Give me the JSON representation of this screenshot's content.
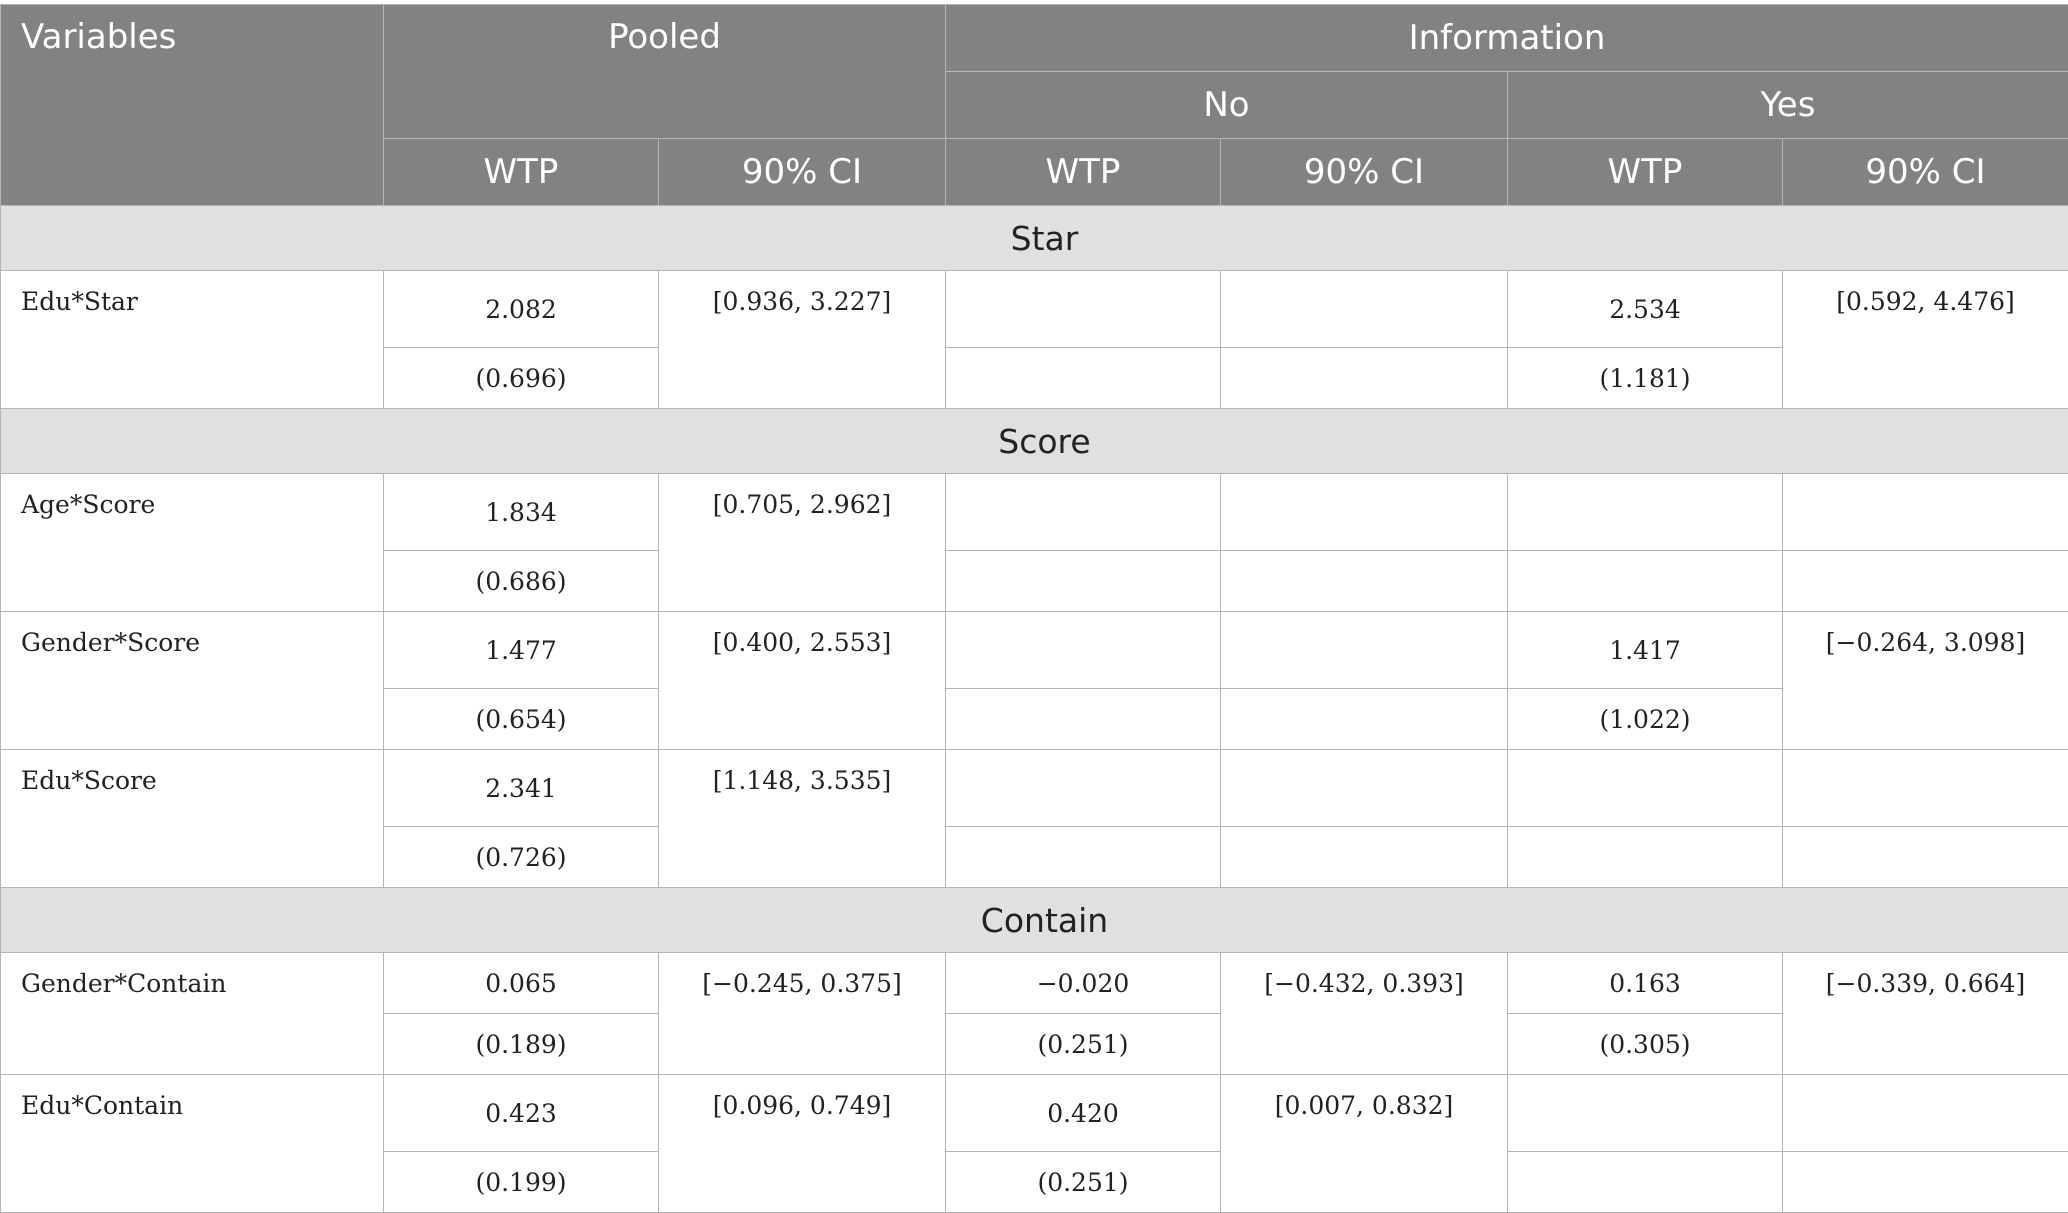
{
  "header": {
    "variables": "Variables",
    "pooled": "Pooled",
    "information": "Information",
    "no": "No",
    "yes": "Yes",
    "wtp": "WTP",
    "ci": "90% CI"
  },
  "sections": {
    "star": "Star",
    "score": "Score",
    "contain": "Contain"
  },
  "rows": {
    "edu_star": {
      "label": "Edu*Star",
      "pooled": {
        "wtp": "2.082",
        "se": "(0.696)",
        "ci": "[0.936, 3.227]"
      },
      "no": {
        "wtp": "",
        "se": "",
        "ci": ""
      },
      "yes": {
        "wtp": "2.534",
        "se": "(1.181)",
        "ci": "[0.592, 4.476]"
      }
    },
    "age_score": {
      "label": "Age*Score",
      "pooled": {
        "wtp": "1.834",
        "se": "(0.686)",
        "ci": "[0.705, 2.962]"
      },
      "no": {
        "wtp": "",
        "se": "",
        "ci": ""
      },
      "yes": {
        "wtp": "",
        "se": "",
        "ci": ""
      }
    },
    "gender_score": {
      "label": "Gender*Score",
      "pooled": {
        "wtp": "1.477",
        "se": "(0.654)",
        "ci": "[0.400, 2.553]"
      },
      "no": {
        "wtp": "",
        "se": "",
        "ci": ""
      },
      "yes": {
        "wtp": "1.417",
        "se": "(1.022)",
        "ci": "[−0.264, 3.098]"
      }
    },
    "edu_score": {
      "label": "Edu*Score",
      "pooled": {
        "wtp": "2.341",
        "se": "(0.726)",
        "ci": "[1.148, 3.535]"
      },
      "no": {
        "wtp": "",
        "se": "",
        "ci": ""
      },
      "yes": {
        "wtp": "",
        "se": "",
        "ci": ""
      }
    },
    "gender_contain": {
      "label": "Gender*Contain",
      "pooled": {
        "wtp": "0.065",
        "se": "(0.189)",
        "ci": "[−0.245, 0.375]"
      },
      "no": {
        "wtp": "−0.020",
        "se": "(0.251)",
        "ci": "[−0.432, 0.393]"
      },
      "yes": {
        "wtp": "0.163",
        "se": "(0.305)",
        "ci": "[−0.339, 0.664]"
      }
    },
    "edu_contain": {
      "label": "Edu*Contain",
      "pooled": {
        "wtp": "0.423",
        "se": "(0.199)",
        "ci": "[0.096, 0.749]"
      },
      "no": {
        "wtp": "0.420",
        "se": "(0.251)",
        "ci": "[0.007, 0.832]"
      },
      "yes": {
        "wtp": "",
        "se": "",
        "ci": ""
      }
    }
  }
}
